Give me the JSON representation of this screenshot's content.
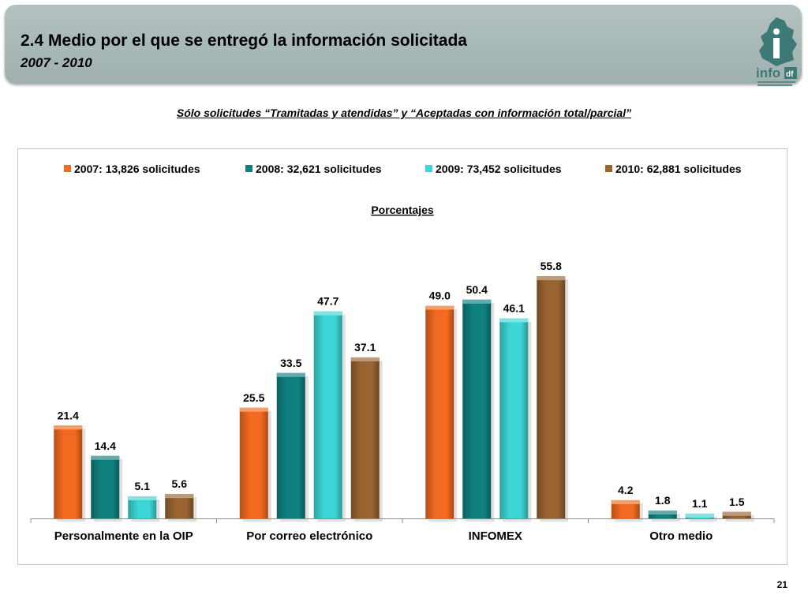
{
  "header": {
    "title": "2.4 Medio por el que se entregó la información solicitada",
    "subtitle": "2007 - 2010",
    "logo_text": "info",
    "logo_badge": "df",
    "colors": {
      "banner": "#a9b9b7",
      "logo": "#3d7a76"
    }
  },
  "note": "Sólo solicitudes “Tramitadas y atendidas” y “Aceptadas con información total/parcial”",
  "page_number": "21",
  "chart_data": {
    "type": "bar",
    "title": "Porcentajes",
    "xlabel": "",
    "ylabel": "",
    "ylim": [
      0,
      60
    ],
    "grid": false,
    "legend_position": "top",
    "categories": [
      "Personalmente en la OIP",
      "Por correo electrónico",
      "INFOMEX",
      "Otro medio"
    ],
    "series": [
      {
        "name": "2007: 13,826 solicitudes",
        "color": "#f26a1f",
        "values": [
          21.4,
          25.5,
          49.0,
          4.2
        ],
        "labels": [
          "21.4",
          "25.5",
          "49.0",
          "4.2"
        ]
      },
      {
        "name": "2008: 32,621 solicitudes",
        "color": "#0f8080",
        "values": [
          14.4,
          33.5,
          50.4,
          1.8
        ],
        "labels": [
          "14.4",
          "33.5",
          "50.4",
          "1.8"
        ]
      },
      {
        "name": "2009: 73,452 solicitudes",
        "color": "#3dd6d6",
        "values": [
          5.1,
          47.7,
          46.1,
          1.1
        ],
        "labels": [
          "5.1",
          "47.7",
          "46.1",
          "1.1"
        ]
      },
      {
        "name": "2010: 62,881 solicitudes",
        "color": "#9a6431",
        "values": [
          5.6,
          37.1,
          55.8,
          1.5
        ],
        "labels": [
          "5.6",
          "37.1",
          "55.8",
          "1.5"
        ]
      }
    ]
  }
}
